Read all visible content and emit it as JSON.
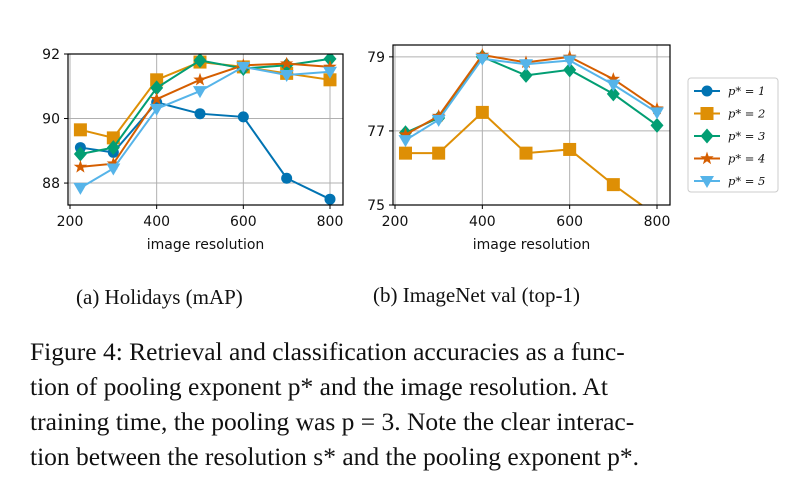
{
  "chart_data": [
    {
      "type": "line",
      "title": "(a) Holidays (mAP)",
      "xlabel": "image resolution",
      "ylabel": "",
      "x": [
        224,
        300,
        400,
        500,
        600,
        700,
        800
      ],
      "xlim": [
        195,
        815
      ],
      "ylim": [
        87.32,
        92.0
      ],
      "xticks": [
        "200",
        "400",
        "600",
        "800"
      ],
      "yticks": [
        "88",
        "90",
        "92"
      ],
      "grid": true,
      "series": [
        {
          "name": "p*=1",
          "color": "#0173b2",
          "marker": "circle",
          "values": [
            89.1,
            88.95,
            90.5,
            90.15,
            90.05,
            88.15,
            87.5
          ]
        },
        {
          "name": "p*=2",
          "color": "#de8f05",
          "marker": "square",
          "values": [
            89.65,
            89.4,
            91.2,
            91.75,
            91.6,
            91.4,
            91.2
          ]
        },
        {
          "name": "p*=3",
          "color": "#029e73",
          "marker": "diamond",
          "values": [
            88.9,
            89.1,
            90.95,
            91.8,
            91.55,
            91.65,
            91.85
          ]
        },
        {
          "name": "p*=4",
          "color": "#d55e00",
          "marker": "star",
          "values": [
            88.5,
            88.6,
            90.6,
            91.2,
            91.65,
            91.7,
            91.6
          ]
        },
        {
          "name": "p*=5",
          "color": "#56b4e9",
          "marker": "triangle-down",
          "values": [
            87.85,
            88.45,
            90.3,
            90.85,
            91.6,
            91.35,
            91.45
          ]
        }
      ]
    },
    {
      "type": "line",
      "title": "(b) ImageNet val (top-1)",
      "xlabel": "image resolution",
      "ylabel": "",
      "x": [
        224,
        300,
        400,
        500,
        600,
        700,
        800
      ],
      "xlim": [
        195,
        815
      ],
      "ylim": [
        75.0,
        79.32
      ],
      "xticks": [
        "200",
        "400",
        "600",
        "800"
      ],
      "yticks": [
        "75",
        "77",
        "79"
      ],
      "grid": true,
      "series": [
        {
          "name": "p*=2",
          "color": "#de8f05",
          "marker": "square",
          "values": [
            76.4,
            76.4,
            77.5,
            76.4,
            76.5,
            75.55,
            74.7
          ]
        },
        {
          "name": "p*=3",
          "color": "#029e73",
          "marker": "diamond",
          "values": [
            76.95,
            77.35,
            79.0,
            78.5,
            78.65,
            78.0,
            77.15
          ]
        },
        {
          "name": "p*=4",
          "color": "#d55e00",
          "marker": "star",
          "values": [
            76.9,
            77.4,
            79.05,
            78.85,
            79.0,
            78.4,
            77.6
          ]
        },
        {
          "name": "p*=5",
          "color": "#56b4e9",
          "marker": "triangle-down",
          "values": [
            76.75,
            77.3,
            78.95,
            78.8,
            78.9,
            78.25,
            77.5
          ]
        }
      ]
    }
  ],
  "legend": {
    "placement": "right",
    "entries": [
      {
        "label": "p* = 1",
        "color": "#0173b2",
        "marker": "circle"
      },
      {
        "label": "p* = 2",
        "color": "#de8f05",
        "marker": "square"
      },
      {
        "label": "p* = 3",
        "color": "#029e73",
        "marker": "diamond"
      },
      {
        "label": "p* = 4",
        "color": "#d55e00",
        "marker": "star"
      },
      {
        "label": "p* = 5",
        "color": "#56b4e9",
        "marker": "triangle-down"
      }
    ]
  },
  "caption": {
    "line1": "Figure 4:  Retrieval and classification accuracies as a func-",
    "line2": "tion of pooling exponent p* and the image resolution.  At",
    "line3": "training time, the pooling was p = 3. Note the clear interac-",
    "line4": "tion between the resolution s* and the pooling exponent p*."
  }
}
